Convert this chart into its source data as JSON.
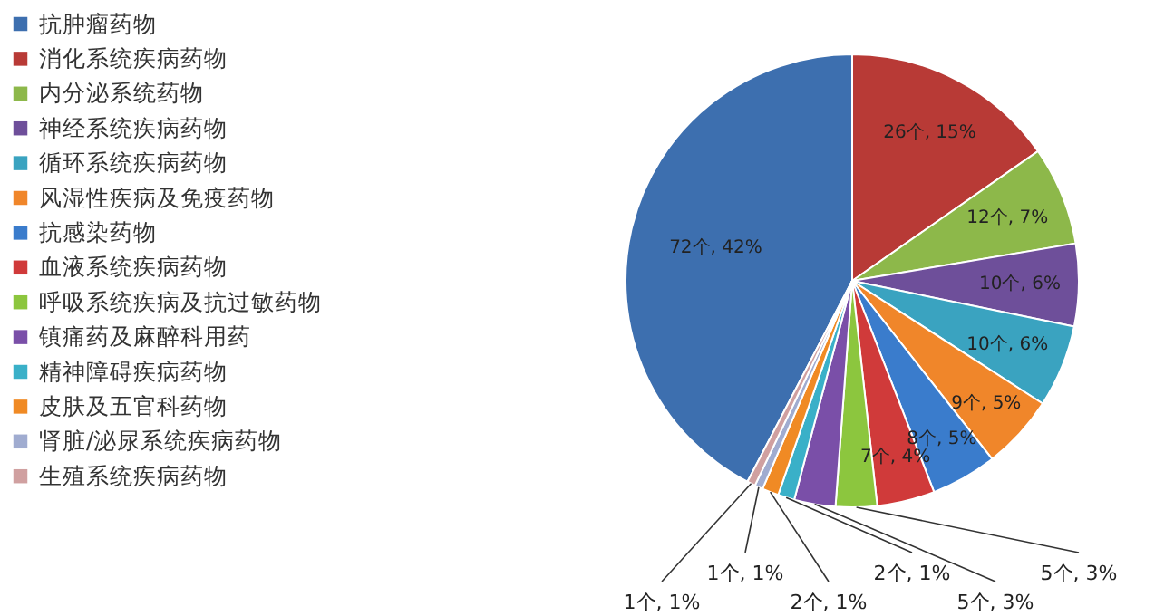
{
  "chart_data": {
    "type": "pie",
    "categories": [
      "抗肿瘤药物",
      "消化系统疾病药物",
      "内分泌系统药物",
      "神经系统疾病药物",
      "循环系统疾病药物",
      "风湿性疾病及免疫药物",
      "抗感染药物",
      "血液系统疾病药物",
      "呼吸系统疾病及抗过敏药物",
      "镇痛药及麻醉科用药",
      "精神障碍疾病药物",
      "皮肤及五官科药物",
      "肾脏/泌尿系统疾病药物",
      "生殖系统疾病药物"
    ],
    "values": [
      72,
      26,
      12,
      10,
      10,
      9,
      8,
      7,
      5,
      5,
      2,
      2,
      1,
      1
    ],
    "value_labels": [
      "72个, 42%",
      "26个, 15%",
      "12个, 7%",
      "10个, 6%",
      "10个, 6%",
      "9个, 5%",
      "8个, 5%",
      "7个, 4%",
      "5个, 3%",
      "5个, 3%",
      "2个, 1%",
      "2个, 1%",
      "1个, 1%",
      "1个, 1%"
    ],
    "colors": [
      "#3d6faf",
      "#b83a36",
      "#8db84a",
      "#6e4f9a",
      "#3aa3c0",
      "#f0862a",
      "#3a7ccc",
      "#d03a3a",
      "#8cc63e",
      "#7a4fa8",
      "#3ab0c8",
      "#f08a24",
      "#a0acd0",
      "#d0a0a0"
    ],
    "legend": "left"
  }
}
